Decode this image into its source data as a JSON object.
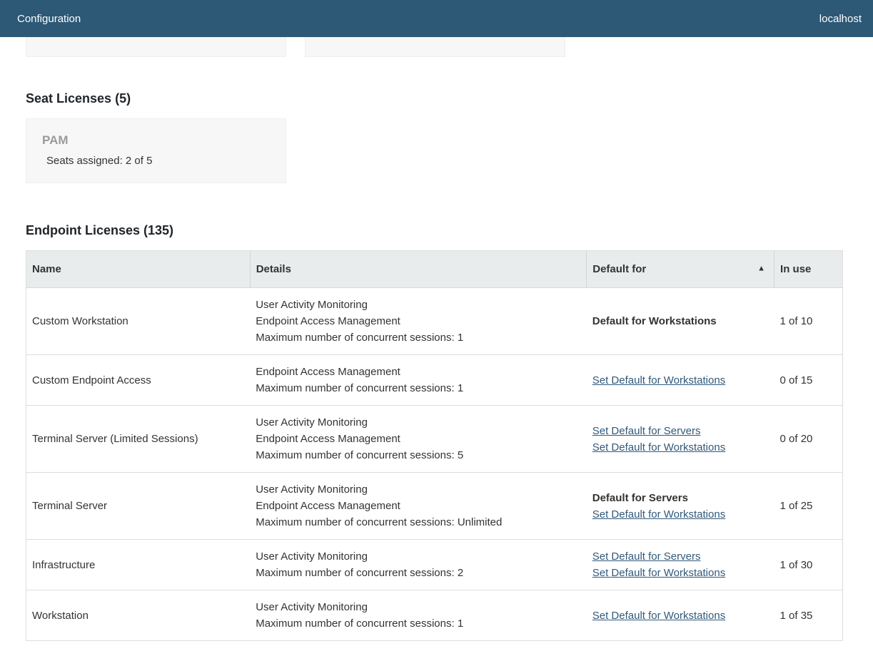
{
  "topbar": {
    "title": "Configuration",
    "host": "localhost"
  },
  "colors": {
    "topbar_background": "#2d5876",
    "link": "#31597a",
    "table_header_background": "#e9eced",
    "card_background": "#f7f7f7",
    "row_border": "#dddddd"
  },
  "seat_section": {
    "heading": "Seat Licenses (5)",
    "cards": [
      {
        "title": "PAM",
        "detail": "Seats assigned: 2 of 5"
      }
    ]
  },
  "endpoint_section": {
    "heading": "Endpoint Licenses (135)",
    "table": {
      "columns": [
        "Name",
        "Details",
        "Default for",
        "In use"
      ],
      "sort_column": "Default for",
      "sort_direction": "ascending",
      "sort_icon": "▲",
      "rows": [
        {
          "name": "Custom Workstation",
          "details": [
            "User Activity Monitoring",
            "Endpoint Access Management",
            "Maximum number of concurrent sessions: 1"
          ],
          "default_for": [
            {
              "text": "Default for Workstations",
              "type": "label"
            }
          ],
          "in_use": "1 of 10"
        },
        {
          "name": "Custom Endpoint Access",
          "details": [
            "Endpoint Access Management",
            "Maximum number of concurrent sessions: 1"
          ],
          "default_for": [
            {
              "text": "Set Default for Workstations",
              "type": "link"
            }
          ],
          "in_use": "0 of 15"
        },
        {
          "name": "Terminal Server (Limited Sessions)",
          "details": [
            "User Activity Monitoring",
            "Endpoint Access Management",
            "Maximum number of concurrent sessions: 5"
          ],
          "default_for": [
            {
              "text": "Set Default for Servers",
              "type": "link"
            },
            {
              "text": "Set Default for Workstations",
              "type": "link"
            }
          ],
          "in_use": "0 of 20"
        },
        {
          "name": "Terminal Server",
          "details": [
            "User Activity Monitoring",
            "Endpoint Access Management",
            "Maximum number of concurrent sessions: Unlimited"
          ],
          "default_for": [
            {
              "text": "Default for Servers",
              "type": "label"
            },
            {
              "text": "Set Default for Workstations",
              "type": "link"
            }
          ],
          "in_use": "1 of 25"
        },
        {
          "name": "Infrastructure",
          "details": [
            "User Activity Monitoring",
            "Maximum number of concurrent sessions: 2"
          ],
          "default_for": [
            {
              "text": "Set Default for Servers",
              "type": "link"
            },
            {
              "text": "Set Default for Workstations",
              "type": "link"
            }
          ],
          "in_use": "1 of 30"
        },
        {
          "name": "Workstation",
          "details": [
            "User Activity Monitoring",
            "Maximum number of concurrent sessions: 1"
          ],
          "default_for": [
            {
              "text": "Set Default for Workstations",
              "type": "link"
            }
          ],
          "in_use": "1 of 35"
        }
      ]
    }
  }
}
